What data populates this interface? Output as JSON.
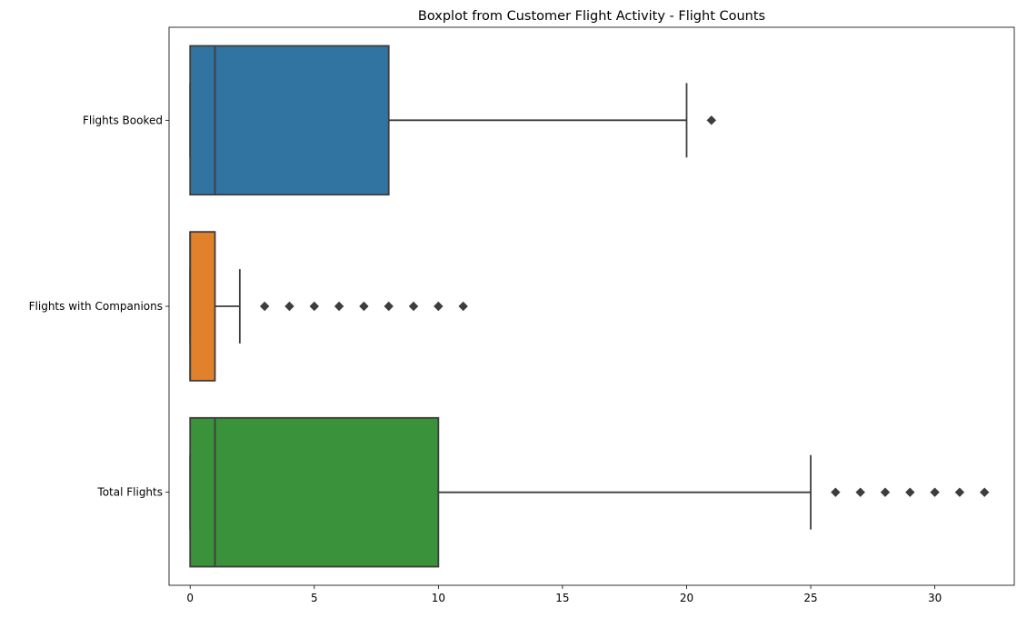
{
  "chart_data": {
    "type": "boxplot",
    "orientation": "horizontal",
    "title": "Boxplot from Customer Flight Activity - Flight Counts",
    "xlabel": "",
    "ylabel": "",
    "xlim": [
      -0.85,
      33.2
    ],
    "xticks": [
      0,
      5,
      10,
      15,
      20,
      25,
      30
    ],
    "grid": false,
    "series": [
      {
        "name": "Flights Booked",
        "color": "#3274a1",
        "min": 0,
        "q1": 0,
        "median": 1,
        "q3": 8,
        "max": 20,
        "outliers": [
          21
        ]
      },
      {
        "name": "Flights with Companions",
        "color": "#e1812c",
        "min": 0,
        "q1": 0,
        "median": 0,
        "q3": 1,
        "max": 2,
        "outliers": [
          3,
          4,
          5,
          6,
          7,
          8,
          9,
          10,
          11
        ]
      },
      {
        "name": "Total Flights",
        "color": "#3a923a",
        "min": 0,
        "q1": 0,
        "median": 1,
        "q3": 10,
        "max": 25,
        "outliers": [
          26,
          27,
          28,
          29,
          30,
          31,
          32
        ]
      }
    ]
  }
}
